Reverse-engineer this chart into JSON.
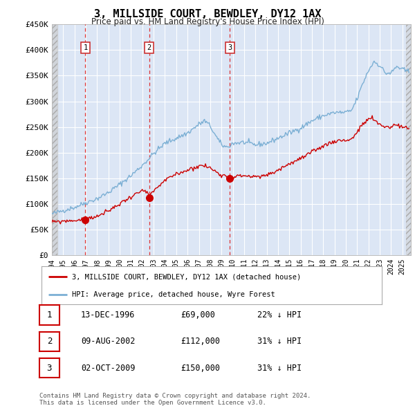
{
  "title": "3, MILLSIDE COURT, BEWDLEY, DY12 1AX",
  "subtitle": "Price paid vs. HM Land Registry's House Price Index (HPI)",
  "ylim": [
    0,
    450000
  ],
  "yticks": [
    0,
    50000,
    100000,
    150000,
    200000,
    250000,
    300000,
    350000,
    400000,
    450000
  ],
  "ytick_labels": [
    "£0",
    "£50K",
    "£100K",
    "£150K",
    "£200K",
    "£250K",
    "£300K",
    "£350K",
    "£400K",
    "£450K"
  ],
  "xlim_start": 1994.0,
  "xlim_end": 2025.75,
  "sale_dates_num": [
    1996.96,
    2002.6,
    2009.75
  ],
  "sale_prices": [
    69000,
    112000,
    150000
  ],
  "sale_labels": [
    "1",
    "2",
    "3"
  ],
  "sale_date_strs": [
    "13-DEC-1996",
    "09-AUG-2002",
    "02-OCT-2009"
  ],
  "sale_price_strs": [
    "£69,000",
    "£112,000",
    "£150,000"
  ],
  "sale_pct_strs": [
    "22% ↓ HPI",
    "31% ↓ HPI",
    "31% ↓ HPI"
  ],
  "red_line_color": "#cc0000",
  "blue_line_color": "#7bafd4",
  "background_color": "#ffffff",
  "plot_bg_color": "#dce6f5",
  "grid_color": "#ffffff",
  "title_fontsize": 11,
  "subtitle_fontsize": 9,
  "legend_label_red": "3, MILLSIDE COURT, BEWDLEY, DY12 1AX (detached house)",
  "legend_label_blue": "HPI: Average price, detached house, Wyre Forest",
  "footer_text": "Contains HM Land Registry data © Crown copyright and database right 2024.\nThis data is licensed under the Open Government Licence v3.0."
}
